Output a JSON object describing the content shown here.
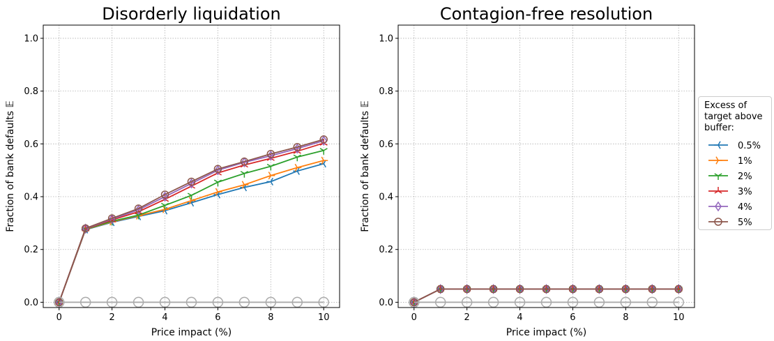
{
  "chart_data": [
    {
      "type": "line",
      "title": "Disorderly liquidation",
      "xlabel": "Price impact (%)",
      "ylabel": "Fraction of bank defaults 𝔼",
      "xlim": [
        -0.6,
        10.6
      ],
      "ylim": [
        -0.02,
        1.05
      ],
      "xticks": [
        0,
        2,
        4,
        6,
        8,
        10
      ],
      "yticks": [
        0.0,
        0.2,
        0.4,
        0.6,
        0.8,
        1.0
      ],
      "ytick_labels": [
        "0.0",
        "0.2",
        "0.4",
        "0.6",
        "0.8",
        "1.0"
      ],
      "grid": true,
      "x": [
        0,
        1,
        2,
        3,
        4,
        5,
        6,
        7,
        8,
        9,
        10
      ],
      "series": [
        {
          "name": "0.5%",
          "color": "#1f77b4",
          "marker": "tri_left",
          "values": [
            0.0,
            0.275,
            0.303,
            0.325,
            0.347,
            0.377,
            0.408,
            0.435,
            0.457,
            0.497,
            0.525
          ]
        },
        {
          "name": "1%",
          "color": "#ff7f0e",
          "marker": "tri_right",
          "values": [
            0.0,
            0.276,
            0.305,
            0.328,
            0.352,
            0.385,
            0.418,
            0.445,
            0.48,
            0.51,
            0.537
          ]
        },
        {
          "name": "2%",
          "color": "#2ca02c",
          "marker": "tri_down",
          "values": [
            0.0,
            0.277,
            0.307,
            0.33,
            0.367,
            0.405,
            0.455,
            0.488,
            0.515,
            0.55,
            0.575
          ]
        },
        {
          "name": "3%",
          "color": "#d62728",
          "marker": "tri_up",
          "values": [
            0.0,
            0.278,
            0.312,
            0.343,
            0.39,
            0.44,
            0.49,
            0.52,
            0.545,
            0.572,
            0.603
          ]
        },
        {
          "name": "4%",
          "color": "#9467bd",
          "marker": "diamond",
          "values": [
            0.0,
            0.279,
            0.315,
            0.35,
            0.4,
            0.45,
            0.5,
            0.53,
            0.555,
            0.582,
            0.612
          ]
        },
        {
          "name": "5%",
          "color": "#8c564b",
          "marker": "circle",
          "values": [
            0.0,
            0.28,
            0.318,
            0.355,
            0.408,
            0.457,
            0.505,
            0.533,
            0.562,
            0.588,
            0.617
          ]
        },
        {
          "color": "#aaaaaa",
          "marker": "circle_large",
          "values": [
            0.0,
            0.0,
            0.0,
            0.0,
            0.0,
            0.0,
            0.0,
            0.0,
            0.0,
            0.0,
            0.0
          ]
        }
      ]
    },
    {
      "type": "line",
      "title": "Contagion-free resolution",
      "xlabel": "Price impact (%)",
      "ylabel": "Fraction of bank defaults 𝔼",
      "xlim": [
        -0.6,
        10.6
      ],
      "ylim": [
        -0.02,
        1.05
      ],
      "xticks": [
        0,
        2,
        4,
        6,
        8,
        10
      ],
      "yticks": [
        0.0,
        0.2,
        0.4,
        0.6,
        0.8,
        1.0
      ],
      "ytick_labels": [
        "0.0",
        "0.2",
        "0.4",
        "0.6",
        "0.8",
        "1.0"
      ],
      "grid": true,
      "x": [
        0,
        1,
        2,
        3,
        4,
        5,
        6,
        7,
        8,
        9,
        10
      ],
      "series": [
        {
          "name": "0.5%",
          "color": "#1f77b4",
          "marker": "tri_left",
          "values": [
            0.0,
            0.05,
            0.05,
            0.05,
            0.05,
            0.05,
            0.05,
            0.05,
            0.05,
            0.05,
            0.05
          ]
        },
        {
          "name": "1%",
          "color": "#ff7f0e",
          "marker": "tri_right",
          "values": [
            0.0,
            0.05,
            0.05,
            0.05,
            0.05,
            0.05,
            0.05,
            0.05,
            0.05,
            0.05,
            0.05
          ]
        },
        {
          "name": "2%",
          "color": "#2ca02c",
          "marker": "tri_down",
          "values": [
            0.0,
            0.05,
            0.05,
            0.05,
            0.05,
            0.05,
            0.05,
            0.05,
            0.05,
            0.05,
            0.05
          ]
        },
        {
          "name": "3%",
          "color": "#d62728",
          "marker": "tri_up",
          "values": [
            0.0,
            0.05,
            0.05,
            0.05,
            0.05,
            0.05,
            0.05,
            0.05,
            0.05,
            0.05,
            0.05
          ]
        },
        {
          "name": "4%",
          "color": "#9467bd",
          "marker": "diamond",
          "values": [
            0.0,
            0.05,
            0.05,
            0.05,
            0.05,
            0.05,
            0.05,
            0.05,
            0.05,
            0.05,
            0.05
          ]
        },
        {
          "name": "5%",
          "color": "#8c564b",
          "marker": "circle",
          "values": [
            0.0,
            0.05,
            0.05,
            0.05,
            0.05,
            0.05,
            0.05,
            0.05,
            0.05,
            0.05,
            0.05
          ]
        },
        {
          "color": "#aaaaaa",
          "marker": "circle_large",
          "values": [
            0.0,
            0.0,
            0.0,
            0.0,
            0.0,
            0.0,
            0.0,
            0.0,
            0.0,
            0.0,
            0.0
          ]
        }
      ]
    }
  ],
  "legend": {
    "title": "Excess of target above buffer:",
    "placement": "outside-right",
    "entries": [
      {
        "label": "0.5%",
        "color": "#1f77b4",
        "marker": "tri_left"
      },
      {
        "label": "1%",
        "color": "#ff7f0e",
        "marker": "tri_right"
      },
      {
        "label": "2%",
        "color": "#2ca02c",
        "marker": "tri_down"
      },
      {
        "label": "3%",
        "color": "#d62728",
        "marker": "tri_up"
      },
      {
        "label": "4%",
        "color": "#9467bd",
        "marker": "diamond"
      },
      {
        "label": "5%",
        "color": "#8c564b",
        "marker": "circle"
      }
    ]
  }
}
